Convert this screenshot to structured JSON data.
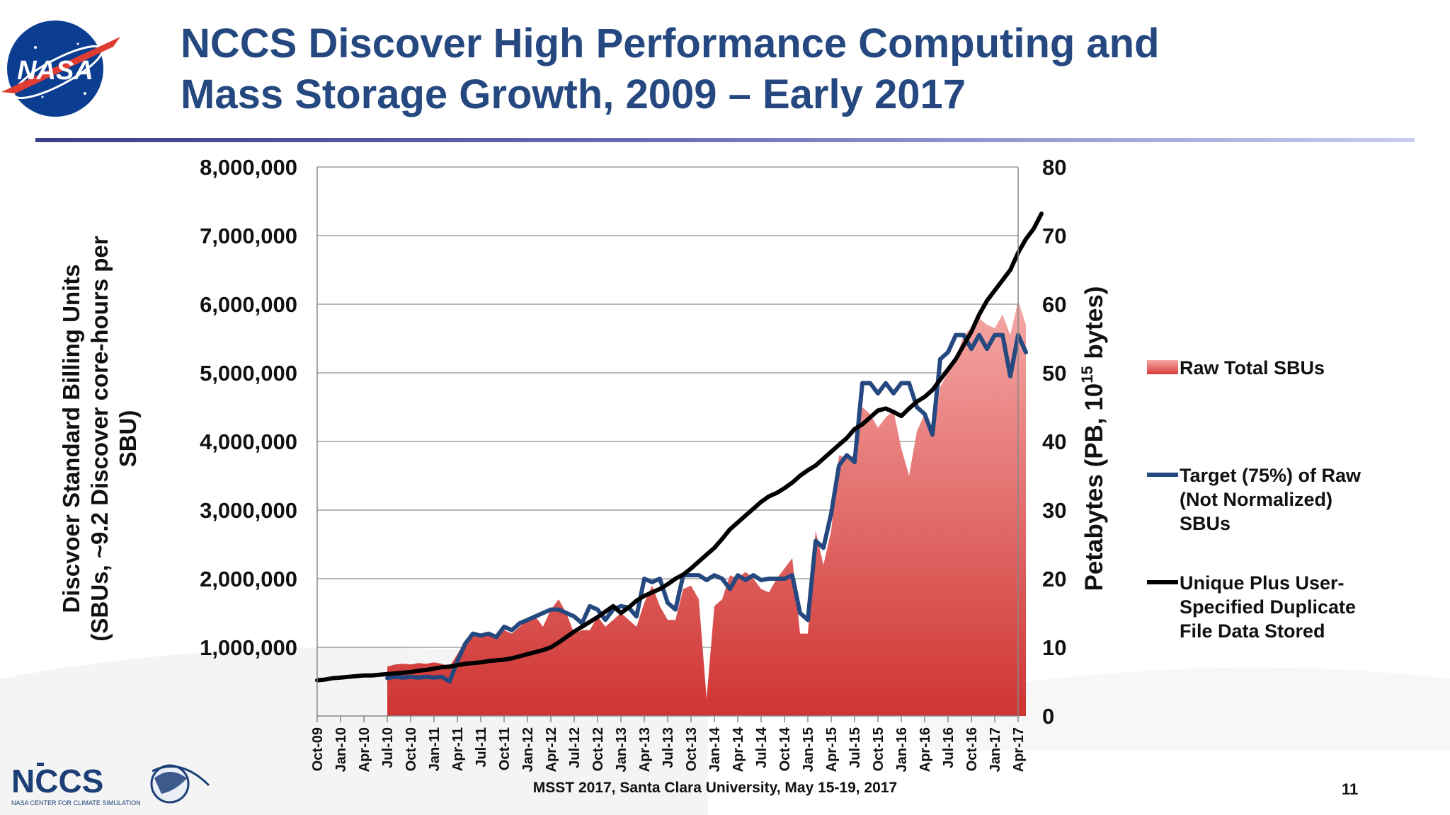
{
  "slide": {
    "title_line1": "NCCS Discover High Performance Computing and",
    "title_line2": "Mass Storage Growth, 2009 – Early 2017",
    "footer": "MSST 2017, Santa Clara University, May 15-19, 2017",
    "page_number": "11",
    "logos": {
      "nasa": "NASA",
      "nccs": "NCCS",
      "nccs_caption": "NASA CENTER FOR CLIMATE SIMULATION"
    }
  },
  "colors": {
    "title": "#24487f",
    "area_top": "#f5a8a6",
    "area_bottom": "#cf3432",
    "target_line": "#24487f",
    "unique_line": "#000000",
    "grid": "#8c8c8c"
  },
  "chart_data": {
    "type": "area",
    "ylabel_left_lines": [
      "Discvoer Standard Billing Units",
      "(SBUs, ~9.2 Discover core-hours per",
      "SBU)"
    ],
    "ylabel_right": "Petabytes (PB, 10^15 bytes)",
    "ylabel_right_parts": {
      "base": "Petabytes (PB, 10",
      "sup": "15",
      "tail": " bytes)"
    },
    "y_left": {
      "min": 0,
      "max": 8000000,
      "ticks": [
        "1,000,000",
        "2,000,000",
        "3,000,000",
        "4,000,000",
        "5,000,000",
        "6,000,000",
        "7,000,000",
        "8,000,000"
      ]
    },
    "y_right": {
      "min": 0,
      "max": 80,
      "ticks": [
        "0",
        "10",
        "20",
        "30",
        "40",
        "50",
        "60",
        "70",
        "80"
      ]
    },
    "grid": true,
    "legend_position": "right",
    "x_tick_labels": [
      "Oct-09",
      "Jan-10",
      "Apr-10",
      "Jul-10",
      "Oct-10",
      "Jan-11",
      "Apr-11",
      "Jul-11",
      "Oct-11",
      "Jan-12",
      "Apr-12",
      "Jul-12",
      "Oct-12",
      "Jan-13",
      "Apr-13",
      "Jul-13",
      "Oct-13",
      "Jan-14",
      "Apr-14",
      "Jul-14",
      "Oct-14",
      "Jan-15",
      "Apr-15",
      "Jul-15",
      "Oct-15",
      "Jan-16",
      "Apr-16",
      "Jul-16",
      "Oct-16",
      "Jan-17",
      "Apr-17"
    ],
    "x_start_month": "Oct-09",
    "series": [
      {
        "name": "Raw Total SBUs",
        "type": "area",
        "axis": "left",
        "start": "Jul-10",
        "values": [
          720000,
          750000,
          760000,
          750000,
          770000,
          760000,
          780000,
          760000,
          720000,
          900000,
          1100000,
          1200000,
          1150000,
          1200000,
          1150000,
          1250000,
          1200000,
          1300000,
          1400000,
          1450000,
          1300000,
          1550000,
          1700000,
          1500000,
          1200000,
          1250000,
          1250000,
          1450000,
          1300000,
          1400000,
          1500000,
          1400000,
          1300000,
          1650000,
          1900000,
          1600000,
          1400000,
          1400000,
          1850000,
          1900000,
          1700000,
          250000,
          1600000,
          1700000,
          2050000,
          2000000,
          2100000,
          2000000,
          1850000,
          1800000,
          2000000,
          2150000,
          2300000,
          1200000,
          1200000,
          2700000,
          2200000,
          2700000,
          3800000,
          3750000,
          3800000,
          4500000,
          4400000,
          4200000,
          4350000,
          4450000,
          3900000,
          3500000,
          4150000,
          4400000,
          4100000,
          4800000,
          5000000,
          5200000,
          5550000,
          5650000,
          5800000,
          5700000,
          5650000,
          5850000,
          5550000,
          6050000,
          5700000
        ],
        "y_units": "SBUs"
      },
      {
        "name": "Target (75%) of Raw (Not Normalized) SBUs",
        "legend_lines": [
          "Target (75%) of Raw",
          "(Not Normalized)",
          "SBUs"
        ],
        "type": "line",
        "axis": "left",
        "start": "Jul-10",
        "values": [
          550000,
          570000,
          560000,
          570000,
          560000,
          570000,
          560000,
          570000,
          500000,
          800000,
          1050000,
          1200000,
          1170000,
          1200000,
          1150000,
          1300000,
          1250000,
          1350000,
          1400000,
          1450000,
          1500000,
          1550000,
          1550000,
          1500000,
          1450000,
          1350000,
          1600000,
          1550000,
          1400000,
          1550000,
          1600000,
          1580000,
          1450000,
          2000000,
          1950000,
          2000000,
          1650000,
          1550000,
          2050000,
          2050000,
          2050000,
          1980000,
          2050000,
          2000000,
          1850000,
          2050000,
          1980000,
          2050000,
          1980000,
          2000000,
          2000000,
          2000000,
          2050000,
          1500000,
          1400000,
          2550000,
          2450000,
          2950000,
          3650000,
          3800000,
          3700000,
          4850000,
          4850000,
          4700000,
          4850000,
          4700000,
          4850000,
          4850000,
          4500000,
          4400000,
          4100000,
          5200000,
          5300000,
          5550000,
          5550000,
          5350000,
          5550000,
          5350000,
          5550000,
          5550000,
          4950000,
          5550000,
          5300000
        ]
      },
      {
        "name": "Unique Plus User-Specified Duplicate File Data Stored",
        "legend_lines": [
          "Unique Plus User-",
          "Specified Duplicate",
          "File Data Stored"
        ],
        "type": "line",
        "axis": "right",
        "start": "Oct-09",
        "y_units": "PB",
        "values": [
          5.2,
          5.3,
          5.5,
          5.6,
          5.7,
          5.8,
          5.9,
          5.9,
          6.0,
          6.1,
          6.2,
          6.3,
          6.4,
          6.6,
          6.7,
          6.9,
          7.1,
          7.2,
          7.4,
          7.6,
          7.7,
          7.8,
          8.0,
          8.1,
          8.2,
          8.4,
          8.7,
          9.0,
          9.3,
          9.6,
          10.0,
          10.7,
          11.5,
          12.3,
          13.0,
          13.7,
          14.4,
          15.2,
          16.0,
          15.0,
          15.8,
          16.8,
          17.5,
          18.0,
          18.5,
          19.2,
          20.0,
          20.6,
          21.5,
          22.5,
          23.5,
          24.5,
          25.8,
          27.2,
          28.2,
          29.2,
          30.2,
          31.2,
          32.0,
          32.5,
          33.2,
          34.0,
          35.0,
          35.8,
          36.5,
          37.5,
          38.5,
          39.5,
          40.5,
          41.8,
          42.5,
          43.5,
          44.5,
          44.8,
          44.3,
          43.7,
          44.8,
          45.8,
          46.5,
          47.5,
          49.0,
          50.5,
          52.0,
          54.0,
          56.0,
          58.5,
          60.5,
          62.0,
          63.5,
          65.0,
          67.5,
          69.5,
          71.0,
          73.2
        ]
      }
    ]
  }
}
